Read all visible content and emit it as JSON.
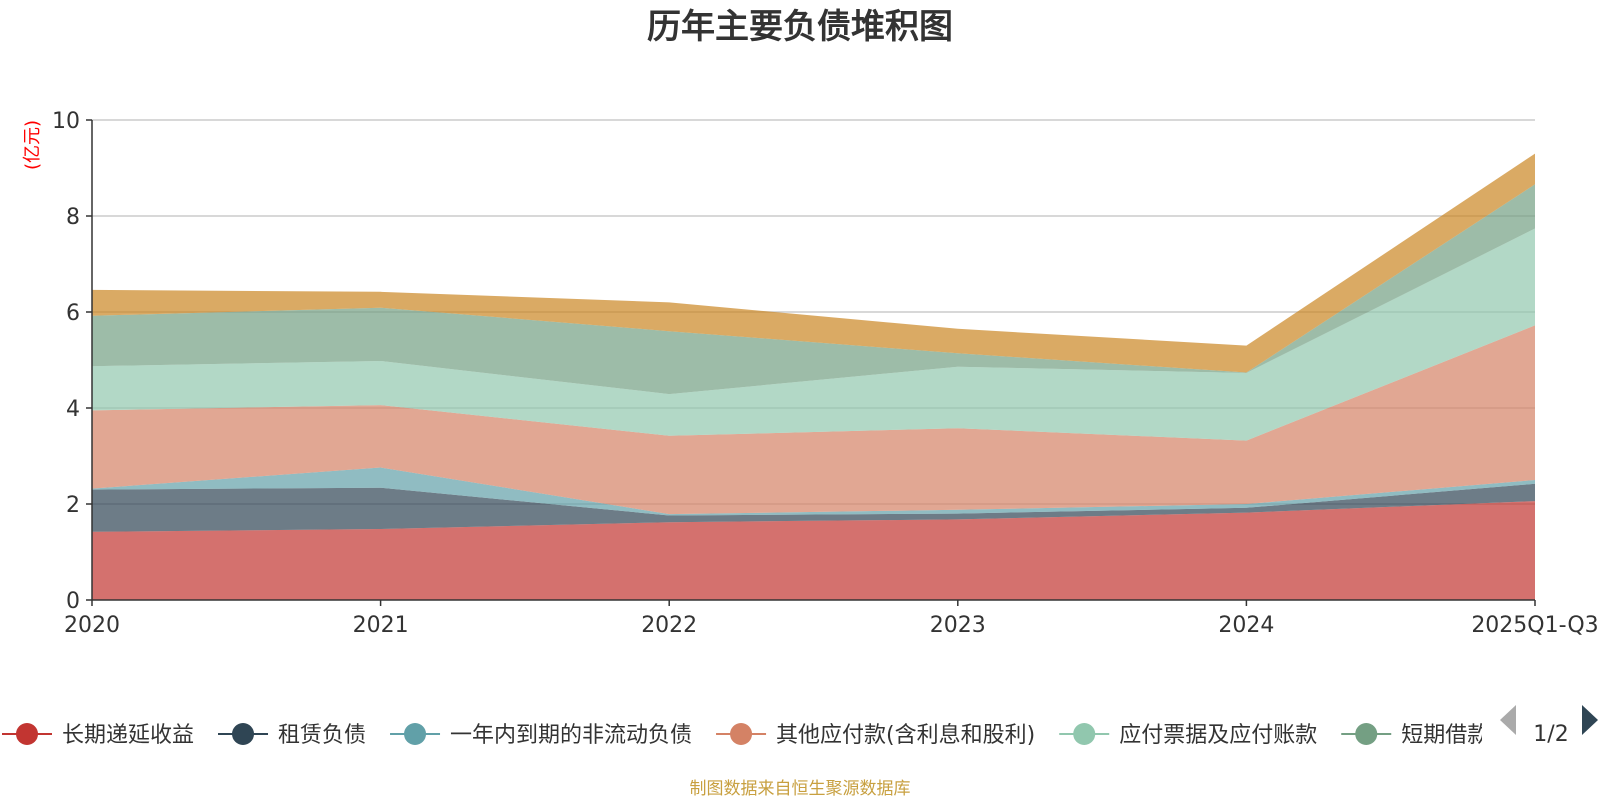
{
  "title": "历年主要负债堆积图",
  "unit_label": "(亿元)",
  "source": "制图数据来自恒生聚源数据库",
  "legend_page": "1/2",
  "colors": {
    "grid": "#cccccc",
    "axis": "#333333",
    "pager_active": "#2f4554",
    "pager_inactive": "#aaaaaa"
  },
  "chart_data": {
    "type": "area",
    "stacked": true,
    "title": "历年主要负债堆积图",
    "ylabel": "(亿元)",
    "ylim": [
      0,
      10
    ],
    "yticks": [
      0,
      2,
      4,
      6,
      8,
      10
    ],
    "grid": true,
    "legend_position": "bottom",
    "categories": [
      "2020",
      "2021",
      "2022",
      "2023",
      "2024",
      "2025Q1-Q3"
    ],
    "series": [
      {
        "name": "长期递延收益",
        "color": "#c23531",
        "values": [
          1.42,
          1.48,
          1.62,
          1.68,
          1.82,
          2.06
        ]
      },
      {
        "name": "租赁负债",
        "color": "#2f4554",
        "values": [
          0.88,
          0.86,
          0.14,
          0.12,
          0.1,
          0.36
        ]
      },
      {
        "name": "一年内到期的非流动负债",
        "color": "#61a0a8",
        "values": [
          0.02,
          0.42,
          0.03,
          0.08,
          0.08,
          0.08
        ]
      },
      {
        "name": "其他应付款(含利息和股利)",
        "color": "#d48265",
        "values": [
          1.63,
          1.3,
          1.63,
          1.7,
          1.32,
          3.22
        ]
      },
      {
        "name": "应付票据及应付账款",
        "color": "#91c7ae",
        "values": [
          0.92,
          0.92,
          0.87,
          1.28,
          1.41,
          2.02
        ]
      },
      {
        "name": "短期借款",
        "color": "#749f83",
        "values": [
          1.05,
          1.11,
          1.31,
          0.28,
          0.01,
          0.92
        ]
      },
      {
        "name": "",
        "color": "#ca8622",
        "values": [
          0.54,
          0.33,
          0.6,
          0.51,
          0.56,
          0.64
        ]
      }
    ]
  }
}
